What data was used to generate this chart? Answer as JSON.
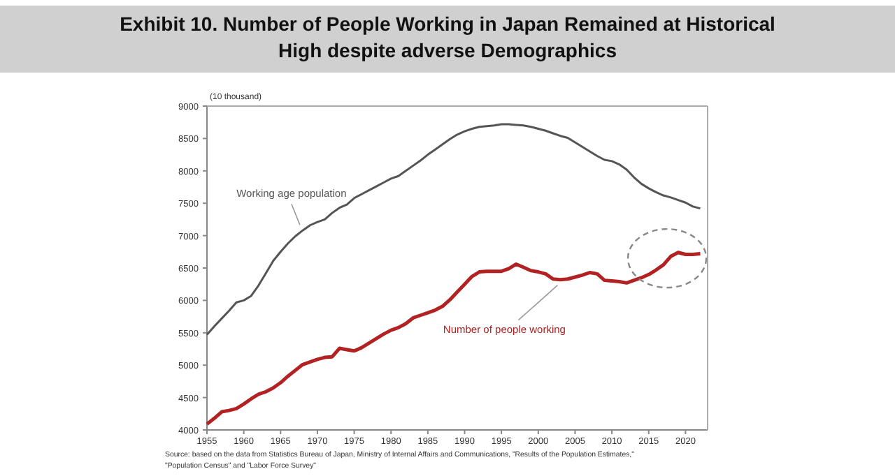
{
  "chart_data": {
    "type": "line",
    "title": "Exhibit 10. Number of People Working in Japan Remained at Historical High despite adverse Demographics",
    "ylabel": "(10 thousand)",
    "x": [
      1955,
      1956,
      1957,
      1958,
      1959,
      1960,
      1961,
      1962,
      1963,
      1964,
      1965,
      1966,
      1967,
      1968,
      1969,
      1970,
      1971,
      1972,
      1973,
      1974,
      1975,
      1976,
      1977,
      1978,
      1979,
      1980,
      1981,
      1982,
      1983,
      1984,
      1985,
      1986,
      1987,
      1988,
      1989,
      1990,
      1991,
      1992,
      1993,
      1994,
      1995,
      1996,
      1997,
      1998,
      1999,
      2000,
      2001,
      2002,
      2003,
      2004,
      2005,
      2006,
      2007,
      2008,
      2009,
      2010,
      2011,
      2012,
      2013,
      2014,
      2015,
      2016,
      2017,
      2018,
      2019,
      2020,
      2021,
      2022
    ],
    "series": [
      {
        "name": "Working age population",
        "color": "#555555",
        "values": [
          5470,
          5600,
          5720,
          5840,
          5970,
          6000,
          6070,
          6230,
          6420,
          6610,
          6750,
          6880,
          6990,
          7080,
          7160,
          7210,
          7250,
          7350,
          7430,
          7480,
          7580,
          7640,
          7700,
          7760,
          7820,
          7880,
          7920,
          8000,
          8080,
          8160,
          8250,
          8330,
          8410,
          8490,
          8560,
          8610,
          8650,
          8680,
          8690,
          8700,
          8720,
          8720,
          8710,
          8700,
          8680,
          8650,
          8620,
          8580,
          8540,
          8510,
          8440,
          8370,
          8300,
          8230,
          8170,
          8150,
          8100,
          8020,
          7900,
          7800,
          7730,
          7670,
          7620,
          7590,
          7550,
          7510,
          7450,
          7420
        ]
      },
      {
        "name": "Number of people working",
        "color": "#b22222",
        "values": [
          4090,
          4180,
          4280,
          4300,
          4330,
          4400,
          4480,
          4550,
          4590,
          4650,
          4730,
          4830,
          4920,
          5010,
          5050,
          5090,
          5120,
          5130,
          5260,
          5240,
          5220,
          5270,
          5340,
          5410,
          5480,
          5540,
          5580,
          5640,
          5730,
          5770,
          5810,
          5850,
          5910,
          6010,
          6130,
          6250,
          6370,
          6440,
          6450,
          6450,
          6450,
          6490,
          6560,
          6510,
          6460,
          6440,
          6410,
          6330,
          6320,
          6330,
          6360,
          6390,
          6430,
          6410,
          6310,
          6300,
          6290,
          6270,
          6310,
          6350,
          6400,
          6470,
          6550,
          6680,
          6740,
          6710,
          6710,
          6720
        ]
      }
    ],
    "xlim": [
      1955,
      2023
    ],
    "xticks": [
      1955,
      1960,
      1965,
      1970,
      1975,
      1980,
      1985,
      1990,
      1995,
      2000,
      2005,
      2010,
      2015,
      2020
    ],
    "ylim": [
      4000,
      9000
    ],
    "yticks": [
      4000,
      4500,
      5000,
      5500,
      6000,
      6500,
      7000,
      7500,
      8000,
      8500,
      9000
    ],
    "grid": false,
    "marker": "none",
    "line_style": "solid",
    "annotations": [
      "Source: based on the data from Statistics Bureau of Japan, Ministry of Internal Affairs and Communications, \"Results of the Population Estimates,\" \"Population Census\" and \"Labor Force Survey\""
    ]
  }
}
